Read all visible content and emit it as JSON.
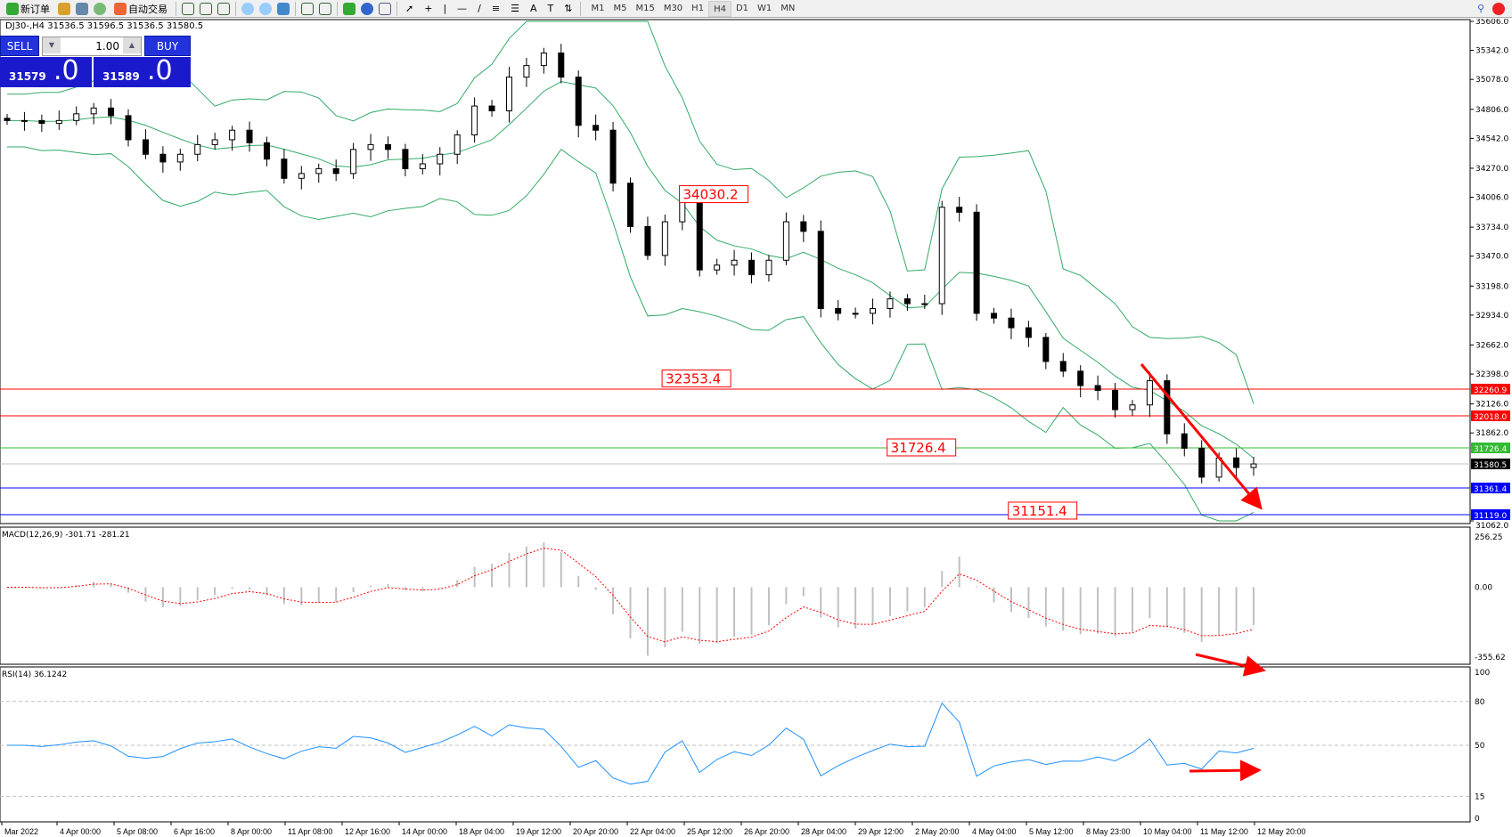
{
  "toolbar": {
    "new_order": "新订单",
    "auto_trading": "自动交易",
    "timeframes": [
      "M1",
      "M5",
      "M15",
      "M30",
      "H1",
      "H4",
      "D1",
      "W1",
      "MN"
    ],
    "active_timeframe": "H4"
  },
  "chart_header": "DJ30-,H4  31536.5 31596.5 31536.5 31580.5",
  "trade_panel": {
    "sell_label": "SELL",
    "buy_label": "BUY",
    "lot": "1.00",
    "sell_price_small": "31579",
    "sell_price_big": ".0",
    "buy_price_small": "31589",
    "buy_price_big": ".0"
  },
  "price_axis": [
    "35606.0",
    "35342.0",
    "35078.0",
    "34806.0",
    "34542.0",
    "34270.0",
    "34006.0",
    "33734.0",
    "33470.0",
    "33198.0",
    "32934.0",
    "32662.0",
    "32398.0",
    "32126.0",
    "31862.0",
    "31062.0"
  ],
  "levels": [
    {
      "price": 32260.9,
      "label": "32260.9",
      "color": "#ff0000"
    },
    {
      "price": 32018.0,
      "label": "32018.0",
      "color": "#ff0000"
    },
    {
      "price": 31726.4,
      "label": "31726.4",
      "color": "#33bb33"
    },
    {
      "price": 31580.5,
      "label": "31580.5",
      "color": "#000000",
      "line": "#c0c0c0"
    },
    {
      "price": 31361.4,
      "label": "31361.4",
      "color": "#0000ff"
    },
    {
      "price": 31119.0,
      "label": "31119.0",
      "color": "#0000ff"
    }
  ],
  "annotations": [
    {
      "price": 34030.2,
      "label": "34030.2",
      "bar": 43
    },
    {
      "price": 32353.4,
      "label": "32353.4",
      "bar": 42
    },
    {
      "price": 31726.4,
      "label": "31726.4",
      "bar": 55
    },
    {
      "price": 31151.4,
      "label": "31151.4",
      "bar": 62
    }
  ],
  "closes": [
    34704,
    34704,
    34678,
    34704,
    34765,
    34818,
    34748,
    34529,
    34397,
    34327,
    34397,
    34485,
    34529,
    34616,
    34502,
    34353,
    34178,
    34222,
    34266,
    34222,
    34441,
    34485,
    34441,
    34266,
    34310,
    34397,
    34573,
    34836,
    34792,
    35099,
    35204,
    35318,
    35099,
    34660,
    34616,
    34134,
    33740,
    33477,
    33783,
    33959,
    33345,
    33389,
    33433,
    33301,
    33433,
    33783,
    33696,
    32994,
    32950,
    32950,
    32994,
    33082,
    33038,
    33038,
    33915,
    33870,
    32950,
    32907,
    32819,
    32731,
    32512,
    32424,
    32293,
    32249,
    32074,
    32117,
    32337,
    31854,
    31723,
    31460,
    31635,
    31548,
    31580
  ],
  "macd": {
    "label": "MACD(12,26,9) -301.71 -281.21",
    "axis": [
      "256.25",
      "0.00",
      "-355.62"
    ],
    "max": 256.25,
    "min": -355.62
  },
  "rsi": {
    "label": "RSI(14) 36.1242",
    "axis": [
      "100",
      "80",
      "50",
      "15",
      "0"
    ],
    "levels": [
      80,
      50,
      15
    ]
  },
  "time_axis": [
    "Mar 2022",
    "4 Apr 00:00",
    "5 Apr 08:00",
    "6 Apr 16:00",
    "8 Apr 00:00",
    "11 Apr 08:00",
    "12 Apr 16:00",
    "14 Apr 00:00",
    "18 Apr 04:00",
    "19 Apr 12:00",
    "20 Apr 20:00",
    "22 Apr 04:00",
    "25 Apr 12:00",
    "26 Apr 20:00",
    "28 Apr 04:00",
    "29 Apr 12:00",
    "2 May 20:00",
    "4 May 04:00",
    "5 May 12:00",
    "8 May 23:00",
    "10 May 04:00",
    "11 May 12:00",
    "12 May 20:00"
  ],
  "colors": {
    "bands": "#33aa66",
    "arrow": "#ff0000",
    "sell_buy": "#2233dd"
  }
}
